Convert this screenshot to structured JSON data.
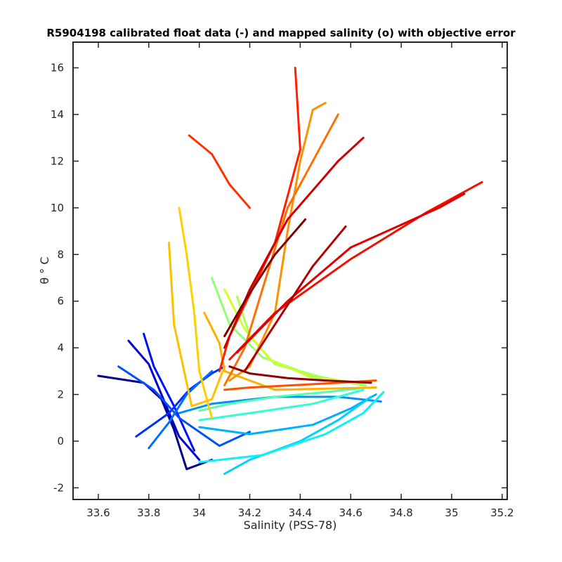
{
  "chart_data": {
    "type": "line",
    "title": "R5904198 calibrated float data (-) and mapped salinity (o) with objective error",
    "xlabel": "Salinity (PSS-78)",
    "ylabel": "θ ° C",
    "xlim": [
      33.5,
      35.22
    ],
    "ylim": [
      -2.5,
      17.1
    ],
    "xticks": [
      "33.6",
      "33.8",
      "34",
      "34.2",
      "34.4",
      "34.6",
      "34.8",
      "35",
      "35.2"
    ],
    "yticks": [
      "-2",
      "0",
      "2",
      "4",
      "6",
      "8",
      "10",
      "12",
      "14",
      "16"
    ],
    "grid": false,
    "colormap": "jet (profile index: blue = early, dark red = late)",
    "series": [
      {
        "color": "#00008f",
        "x": [
          33.6,
          33.78,
          33.85,
          33.9,
          33.95,
          34.05
        ],
        "y": [
          2.8,
          2.5,
          1.8,
          0.5,
          -1.2,
          -0.8
        ]
      },
      {
        "color": "#0000d0",
        "x": [
          33.72,
          33.8,
          33.85,
          33.92,
          34.0
        ],
        "y": [
          4.3,
          3.3,
          2.0,
          0.2,
          -0.8
        ]
      },
      {
        "color": "#0010ff",
        "x": [
          33.78,
          33.82,
          33.9,
          33.98
        ],
        "y": [
          4.6,
          3.2,
          1.5,
          -0.4
        ]
      },
      {
        "color": "#0030ff",
        "x": [
          33.75,
          33.88,
          33.96,
          34.05,
          34.1
        ],
        "y": [
          0.2,
          1.2,
          2.2,
          2.9,
          3.2
        ]
      },
      {
        "color": "#0050ff",
        "x": [
          33.68,
          33.82,
          33.92,
          34.08,
          34.2
        ],
        "y": [
          3.2,
          2.2,
          1.0,
          -0.2,
          0.4
        ]
      },
      {
        "color": "#0070ff",
        "x": [
          33.8,
          33.88,
          33.95,
          34.05
        ],
        "y": [
          -0.3,
          0.8,
          2.0,
          3.0
        ]
      },
      {
        "color": "#0090ff",
        "x": [
          33.92,
          34.05,
          34.3,
          34.55,
          34.72
        ],
        "y": [
          1.2,
          1.6,
          1.9,
          1.9,
          1.7
        ]
      },
      {
        "color": "#00b0ff",
        "x": [
          34.0,
          34.2,
          34.45,
          34.6,
          34.7
        ],
        "y": [
          0.6,
          0.3,
          0.7,
          1.4,
          2.0
        ]
      },
      {
        "color": "#00d0ff",
        "x": [
          34.1,
          34.2,
          34.4,
          34.55,
          34.68
        ],
        "y": [
          -1.4,
          -0.8,
          0.0,
          0.9,
          1.9
        ]
      },
      {
        "color": "#10f0f0",
        "x": [
          34.0,
          34.25,
          34.5,
          34.65,
          34.73
        ],
        "y": [
          -0.9,
          -0.6,
          0.3,
          1.2,
          2.1
        ]
      },
      {
        "color": "#30ffd0",
        "x": [
          34.0,
          34.2,
          34.45,
          34.65
        ],
        "y": [
          0.9,
          1.2,
          1.6,
          2.2
        ]
      },
      {
        "color": "#50ffb0",
        "x": [
          34.0,
          34.12,
          34.3,
          34.5,
          34.66
        ],
        "y": [
          1.3,
          1.6,
          1.9,
          2.1,
          2.3
        ]
      },
      {
        "color": "#90ff70",
        "x": [
          34.05,
          34.12,
          34.25,
          34.45,
          34.66
        ],
        "y": [
          7.0,
          5.0,
          3.6,
          2.8,
          2.4
        ]
      },
      {
        "color": "#b0ff50",
        "x": [
          34.15,
          34.2,
          34.3,
          34.5,
          34.65
        ],
        "y": [
          6.2,
          4.5,
          3.3,
          2.7,
          2.4
        ]
      },
      {
        "color": "#d0ff30",
        "x": [
          34.1,
          34.18,
          34.28,
          34.45,
          34.65
        ],
        "y": [
          6.5,
          4.8,
          3.5,
          2.7,
          2.5
        ]
      },
      {
        "color": "#ffd000",
        "x": [
          33.92,
          33.95,
          33.98,
          34.0,
          34.05
        ],
        "y": [
          10.0,
          8.0,
          5.5,
          3.0,
          1.0
        ]
      },
      {
        "color": "#ffc000",
        "x": [
          33.88,
          33.9,
          33.97,
          34.05,
          34.1
        ],
        "y": [
          8.5,
          5.0,
          1.5,
          1.8,
          3.2
        ]
      },
      {
        "color": "#ffb000",
        "x": [
          34.02,
          34.08,
          34.1,
          34.3,
          34.7
        ],
        "y": [
          5.5,
          4.2,
          3.0,
          2.2,
          2.3
        ]
      },
      {
        "color": "#ff9000",
        "x": [
          34.12,
          34.2,
          34.3,
          34.35,
          34.4,
          34.45,
          34.5
        ],
        "y": [
          2.6,
          3.2,
          5.5,
          9.0,
          12.0,
          14.2,
          14.5
        ]
      },
      {
        "color": "#ff7000",
        "x": [
          34.1,
          34.18,
          34.25,
          34.35,
          34.5,
          34.55
        ],
        "y": [
          2.4,
          4.0,
          6.5,
          10.0,
          13.0,
          14.0
        ]
      },
      {
        "color": "#ff5000",
        "x": [
          34.1,
          34.2,
          34.38,
          34.55,
          34.7
        ],
        "y": [
          2.2,
          2.3,
          2.4,
          2.5,
          2.6
        ]
      },
      {
        "color": "#ff3000",
        "x": [
          33.96,
          34.05,
          34.12,
          34.2
        ],
        "y": [
          13.1,
          12.3,
          11.0,
          10.0
        ]
      },
      {
        "color": "#ff2000",
        "x": [
          34.08,
          34.12,
          34.3,
          34.4,
          34.38
        ],
        "y": [
          3.0,
          4.5,
          8.5,
          12.5,
          16.0
        ]
      },
      {
        "color": "#f01000",
        "x": [
          34.12,
          34.3,
          34.6,
          34.9,
          35.12
        ],
        "y": [
          3.5,
          5.5,
          7.8,
          9.8,
          11.1
        ]
      },
      {
        "color": "#e00000",
        "x": [
          34.15,
          34.35,
          34.6,
          34.95,
          35.05
        ],
        "y": [
          3.8,
          6.0,
          8.3,
          10.0,
          10.6
        ]
      },
      {
        "color": "#d00000",
        "x": [
          34.1,
          34.2,
          34.35,
          34.55,
          34.65
        ],
        "y": [
          4.0,
          6.5,
          9.5,
          12.0,
          13.0
        ]
      },
      {
        "color": "#b00000",
        "x": [
          34.18,
          34.3,
          34.45,
          34.58
        ],
        "y": [
          3.0,
          5.0,
          7.5,
          9.2
        ]
      },
      {
        "color": "#900000",
        "x": [
          34.12,
          34.2,
          34.35,
          34.5,
          34.68
        ],
        "y": [
          3.2,
          2.9,
          2.7,
          2.6,
          2.5
        ]
      },
      {
        "color": "#800000",
        "x": [
          34.1,
          34.18,
          34.3,
          34.42
        ],
        "y": [
          4.5,
          6.0,
          8.0,
          9.5
        ]
      }
    ]
  }
}
